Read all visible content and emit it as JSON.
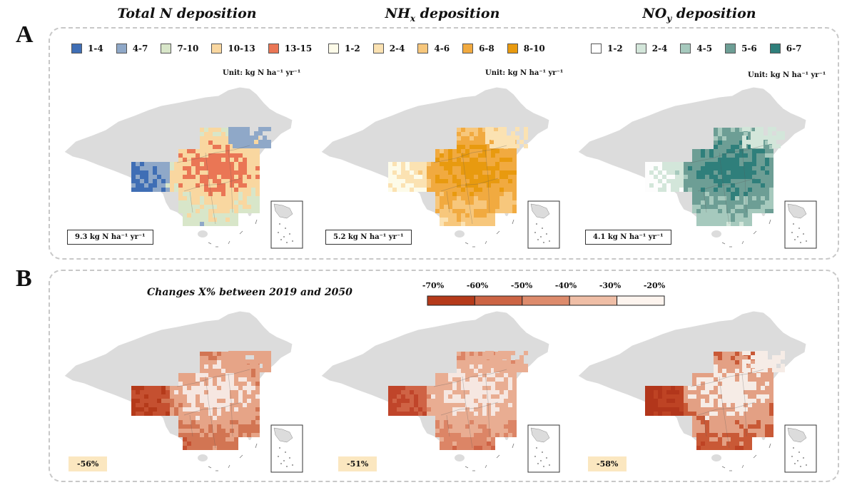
{
  "panels": {
    "a": {
      "letter": "A",
      "maps": [
        {
          "title_main": "Total N deposition",
          "title_sub": "",
          "legend": [
            {
              "label": "1-4",
              "color": "#3f6eb5"
            },
            {
              "label": "4-7",
              "color": "#8fa8c8"
            },
            {
              "label": "7-10",
              "color": "#d8e6c9"
            },
            {
              "label": "10-13",
              "color": "#f9d7a0"
            },
            {
              "label": "13-15",
              "color": "#ea7655"
            }
          ],
          "unit": "Unit: kg N ha⁻¹ yr⁻¹",
          "stat": "9.3 kg N ha⁻¹ yr⁻¹",
          "fill_scheme": [
            "#3f6eb5",
            "#8fa8c8",
            "#d8e6c9",
            "#f9d7a0",
            "#ea7655"
          ]
        },
        {
          "title_main": "NH",
          "title_sub": "x",
          "title_rest": " deposition",
          "legend": [
            {
              "label": "1-2",
              "color": "#fdfbe9"
            },
            {
              "label": "2-4",
              "color": "#fbe2b2"
            },
            {
              "label": "4-6",
              "color": "#f7c77c"
            },
            {
              "label": "6-8",
              "color": "#f1aa40"
            },
            {
              "label": "8-10",
              "color": "#e89a0f"
            }
          ],
          "unit": "Unit: kg N ha⁻¹ yr⁻¹",
          "stat": "5.2 kg N ha⁻¹ yr⁻¹",
          "fill_scheme": [
            "#fdfbe9",
            "#fbe2b2",
            "#f7c77c",
            "#f1aa40",
            "#e89a0f"
          ]
        },
        {
          "title_main": "NO",
          "title_sub": "y",
          "title_rest": " deposition",
          "legend": [
            {
              "label": "1-2",
              "color": "#ffffff"
            },
            {
              "label": "2-4",
              "color": "#d3e6da"
            },
            {
              "label": "4-5",
              "color": "#a6c9bd"
            },
            {
              "label": "5-6",
              "color": "#6d9e95"
            },
            {
              "label": "6-7",
              "color": "#2f7f7b"
            }
          ],
          "unit": "Unit: kg N ha⁻¹ yr⁻¹",
          "stat": "4.1 kg N ha⁻¹ yr⁻¹",
          "fill_scheme": [
            "#fdfdfd",
            "#d3e6da",
            "#a6c9bd",
            "#6d9e95",
            "#2f7f7b"
          ]
        }
      ]
    },
    "b": {
      "letter": "B",
      "changes_title": "Changes X% between 2019 and 2050",
      "colorbar": {
        "labels": [
          "-70%",
          "-60%",
          "-50%",
          "-40%",
          "-30%",
          "-20%"
        ],
        "colors": [
          "#b53a1a",
          "#cc6444",
          "#dd8b6c",
          "#efbea6",
          "#fdf4ee"
        ]
      },
      "maps": [
        {
          "pct": "-56%",
          "fill_scheme": [
            "#b53a1a",
            "#c55030",
            "#d27553",
            "#e6a487",
            "#f6e7e1"
          ]
        },
        {
          "pct": "-51%",
          "fill_scheme": [
            "#c0452a",
            "#cf6345",
            "#dc8566",
            "#e9ad92",
            "#f6e7e1"
          ]
        },
        {
          "pct": "-58%",
          "fill_scheme": [
            "#b2361b",
            "#be4324",
            "#c95936",
            "#e3a084",
            "#f6ece6"
          ]
        }
      ]
    }
  },
  "colors": {
    "land": "#dcdcdc",
    "frame": "#c8c8c8",
    "pct_box": "#fbe7c0"
  },
  "icons": {
    "inset": "south-china-sea-inset-map"
  }
}
